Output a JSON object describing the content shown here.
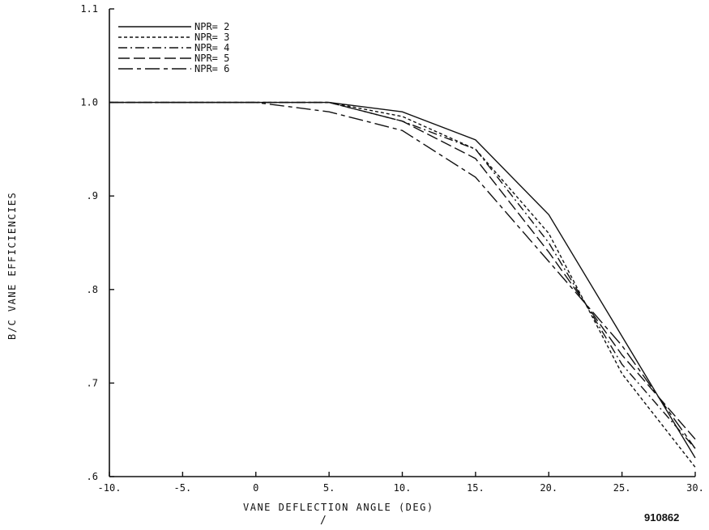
{
  "chart_data": {
    "type": "line",
    "xlabel": "VANE DEFLECTION ANGLE (DEG)",
    "ylabel": "B/C VANE EFFICIENCIES",
    "xlim": [
      -10,
      30
    ],
    "ylim": [
      0.6,
      1.1
    ],
    "x_ticks": [
      -10,
      -5,
      0,
      5,
      10,
      15,
      20,
      25,
      30
    ],
    "x_tick_labels": [
      "-10.",
      "-5.",
      "0",
      "5.",
      "10.",
      "15.",
      "20.",
      "25.",
      "30."
    ],
    "y_ticks": [
      0.6,
      0.7,
      0.8,
      0.9,
      1.0,
      1.1
    ],
    "y_tick_labels": [
      ".6",
      ".7",
      ".8",
      ".9",
      "1.0",
      "1.1"
    ],
    "grid": false,
    "legend_position": "top-left",
    "x": [
      -10,
      0,
      5,
      10,
      15,
      20,
      25,
      30
    ],
    "series": [
      {
        "name": "NPR= 2",
        "dash": "solid",
        "values": [
          1.0,
          1.0,
          1.0,
          0.99,
          0.96,
          0.88,
          0.75,
          0.62
        ]
      },
      {
        "name": "NPR= 3",
        "dash": "short",
        "values": [
          1.0,
          1.0,
          1.0,
          0.985,
          0.95,
          0.86,
          0.71,
          0.61
        ]
      },
      {
        "name": "NPR= 4",
        "dash": "dashdot",
        "values": [
          1.0,
          1.0,
          1.0,
          0.98,
          0.95,
          0.85,
          0.72,
          0.63
        ]
      },
      {
        "name": "NPR= 5",
        "dash": "long",
        "values": [
          1.0,
          1.0,
          1.0,
          0.98,
          0.94,
          0.84,
          0.73,
          0.64
        ]
      },
      {
        "name": "NPR= 6",
        "dash": "longshort",
        "values": [
          1.0,
          1.0,
          0.99,
          0.97,
          0.92,
          0.83,
          0.74,
          0.63
        ]
      }
    ]
  },
  "labels": {
    "xlabel": "VANE DEFLECTION ANGLE (DEG)",
    "ylabel": "B/C VANE EFFICIENCIES",
    "figure_id": "910862",
    "mark": "/"
  }
}
